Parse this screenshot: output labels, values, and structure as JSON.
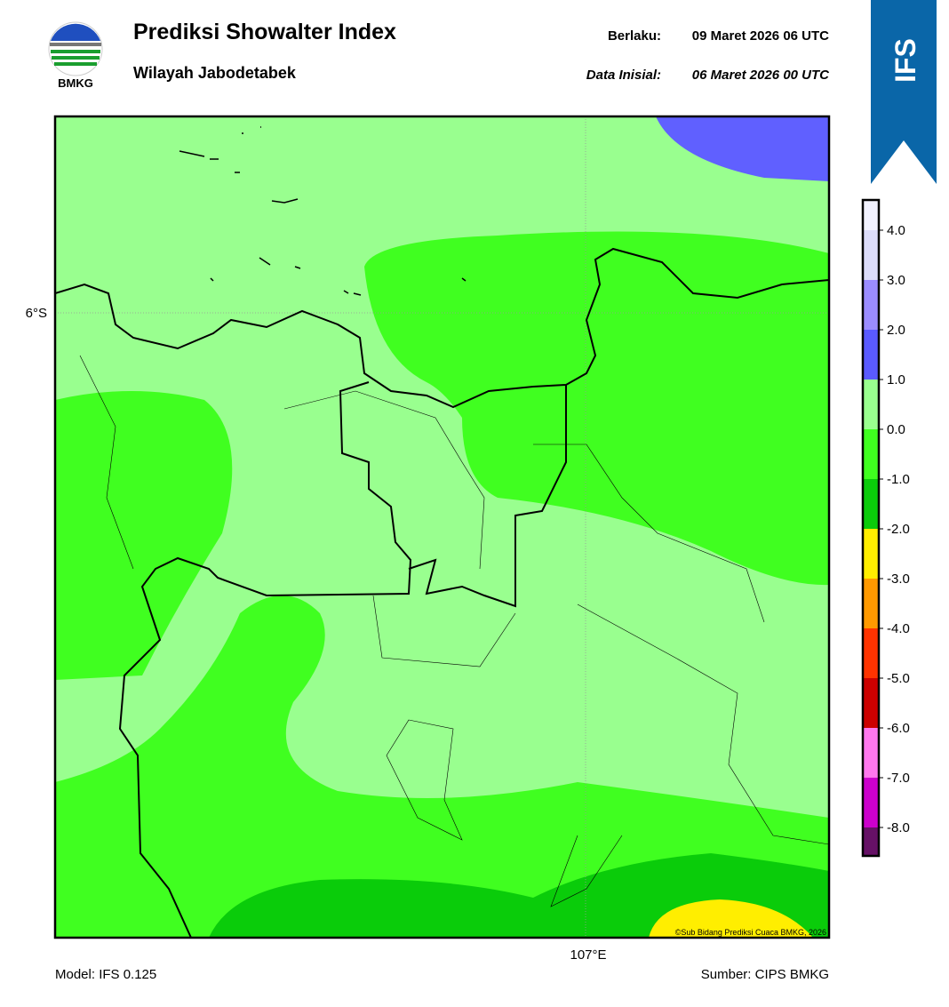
{
  "header": {
    "title": "Prediksi Showalter Index",
    "subtitle": "Wilayah Jabodetabek",
    "valid_label": "Berlaku:",
    "valid": "09 Maret 2026 06 UTC",
    "init_label": "Data Inisial:",
    "init": "06 Maret 2026 00 UTC"
  },
  "logo": {
    "text": "BMKG"
  },
  "badge": "IFS",
  "map": {
    "lat_label": "6°S",
    "lon_label": "107°E",
    "credit": "©Sub Bidang Prediksi Cuaca BMKG, 2026"
  },
  "colorbar": {
    "colors": [
      "#f2f2ff",
      "#dcdcfa",
      "#9b8cff",
      "#5a5aff",
      "#99ff8f",
      "#3fff1f",
      "#0acc0a",
      "#ffee00",
      "#ff9900",
      "#ff3300",
      "#cc0000",
      "#ff77ee",
      "#cc00cc",
      "#661166"
    ],
    "ticks": [
      "4.0",
      "3.0",
      "2.0",
      "1.0",
      "0.0",
      "-1.0",
      "-2.0",
      "-3.0",
      "-4.0",
      "-5.0",
      "-6.0",
      "-7.0",
      "-8.0"
    ]
  },
  "footer": {
    "model": "Model: IFS 0.125",
    "source": "Sumber: CIPS BMKG"
  }
}
